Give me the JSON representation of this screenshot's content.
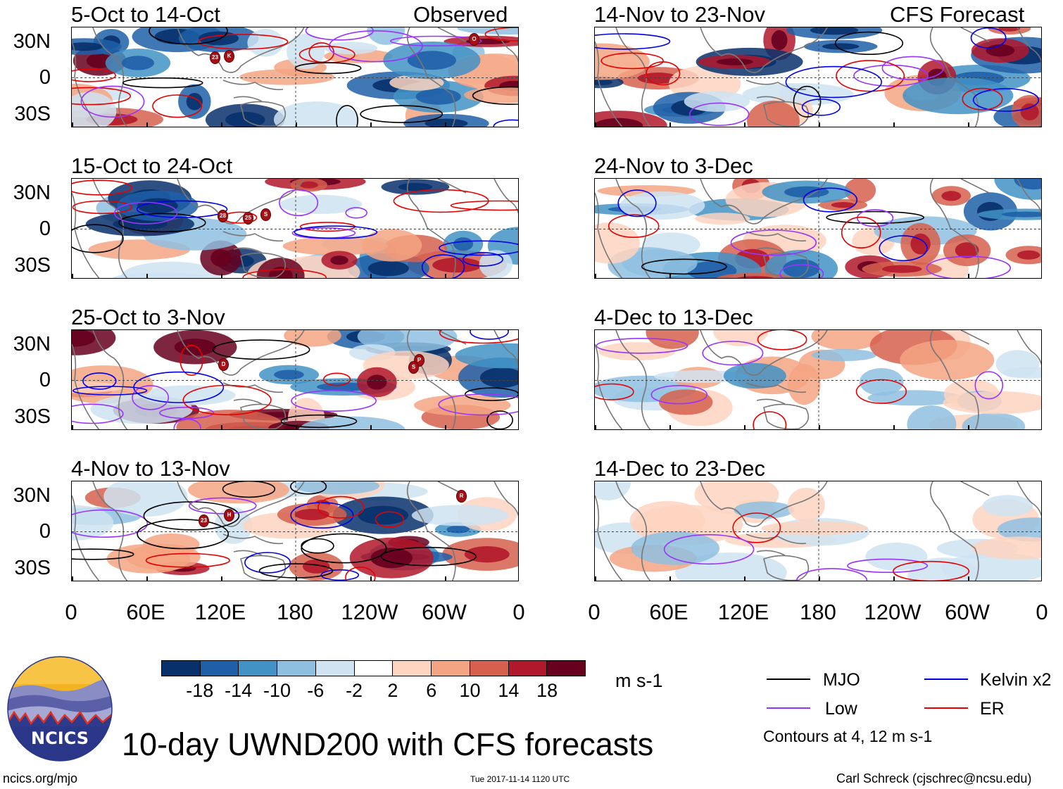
{
  "header": {
    "left_type": "Observed",
    "right_type": "CFS Forecast"
  },
  "panels_left": [
    {
      "title": "5-Oct to 14-Oct"
    },
    {
      "title": "15-Oct to 24-Oct"
    },
    {
      "title": "25-Oct to 3-Nov"
    },
    {
      "title": "4-Nov to 13-Nov"
    }
  ],
  "panels_right": [
    {
      "title": "14-Nov to 23-Nov"
    },
    {
      "title": "24-Nov to 3-Dec"
    },
    {
      "title": "4-Dec to 13-Dec"
    },
    {
      "title": "14-Dec to 23-Dec"
    }
  ],
  "y_axis": [
    "30N",
    "0",
    "30S"
  ],
  "x_axis": [
    "0",
    "60E",
    "120E",
    "180",
    "120W",
    "60W",
    "0"
  ],
  "colorbar": {
    "unit": "m s-1",
    "labels": [
      "-18",
      "-14",
      "-10",
      "-6",
      "-2",
      "2",
      "6",
      "10",
      "14",
      "18"
    ],
    "colors": [
      "#08306b",
      "#1f5fa8",
      "#4292c6",
      "#8fbfe0",
      "#cfe3f2",
      "#ffffff",
      "#fdd4c0",
      "#f4a482",
      "#d6604d",
      "#b2182b",
      "#67001f"
    ]
  },
  "legend": {
    "items": [
      {
        "label": "MJO",
        "color": "#000000"
      },
      {
        "label": "Kelvin x2",
        "color": "#0000e6"
      },
      {
        "label": "Low",
        "color": "#9933ff"
      },
      {
        "label": "ER",
        "color": "#e60000"
      }
    ],
    "note": "Contours at 4, 12 m s-1"
  },
  "logo": {
    "text": "NCICS"
  },
  "main_title": "10-day UWND200 with CFS forecasts",
  "footer": {
    "url": "ncics.org/mjo",
    "timestamp": "Tue 2017-11-14 1120 UTC",
    "credit": "Carl Schreck (cjschrec@ncsu.edu)"
  },
  "storms": [
    {
      "panel": 0,
      "labels": [
        "23",
        "K",
        "O"
      ]
    },
    {
      "panel": 1,
      "labels": [
        "28",
        "25",
        "S"
      ]
    },
    {
      "panel": 2,
      "labels": [
        "D",
        "P",
        "S"
      ]
    },
    {
      "panel": 3,
      "labels": [
        "23",
        "H",
        "R"
      ]
    }
  ]
}
